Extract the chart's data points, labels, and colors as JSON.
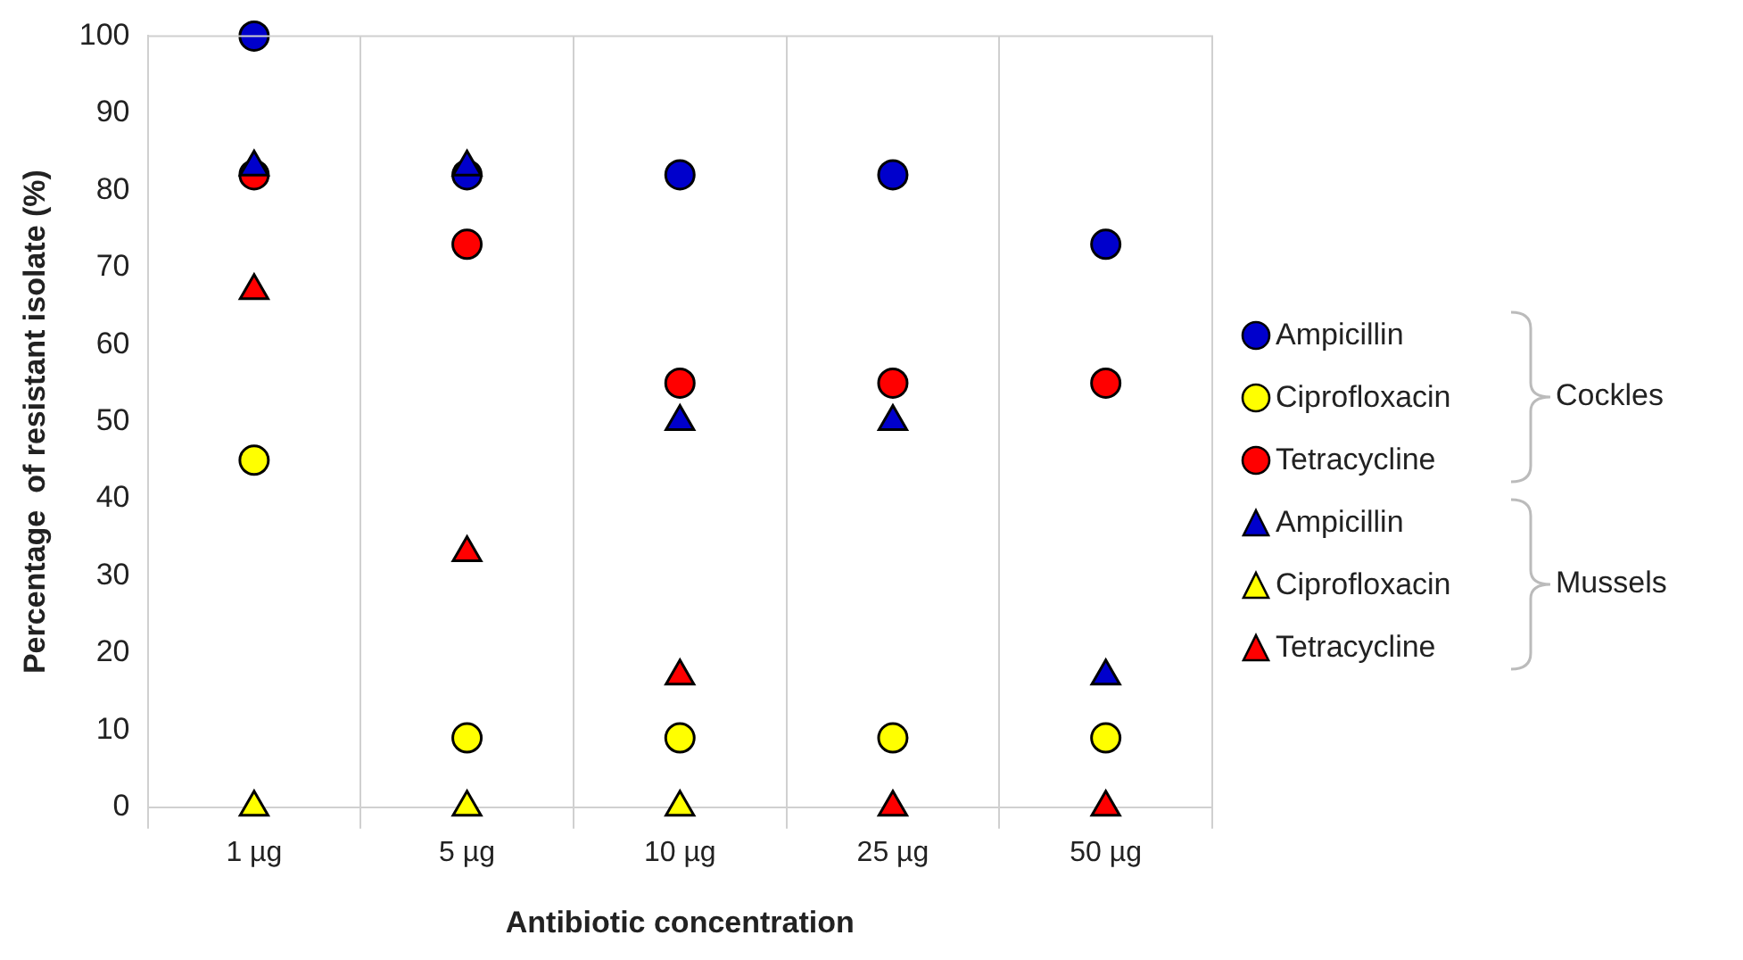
{
  "chart_data": {
    "type": "scatter",
    "xlabel": "Antibiotic concentration",
    "ylabel": "Percentage  of resistant isolate (%)",
    "categories": [
      "1 µg",
      "5 µg",
      "10 µg",
      "25 µg",
      "50 µg"
    ],
    "ylim": [
      0,
      100
    ],
    "yticks": [
      0,
      10,
      20,
      30,
      40,
      50,
      60,
      70,
      80,
      90,
      100
    ],
    "grid": "x",
    "legend": "right",
    "annotations": [
      "Cockles",
      "Mussels"
    ],
    "series": [
      {
        "name": "Ampicillin",
        "color": "#0000cc",
        "marker": "circle",
        "values": [
          100,
          82,
          82,
          82,
          73
        ]
      },
      {
        "name": "Ciprofloxacin",
        "color": "#ffff00",
        "marker": "circle",
        "values": [
          45,
          9,
          9,
          9,
          9
        ]
      },
      {
        "name": "Tetracycline",
        "color": "#ff0000",
        "marker": "circle",
        "values": [
          82,
          73,
          55,
          55,
          55
        ]
      },
      {
        "name": "Ampicillin",
        "color": "#0000cc",
        "marker": "triangle",
        "values": [
          83,
          83,
          50,
          50,
          17
        ]
      },
      {
        "name": "Ciprofloxacin",
        "color": "#ffff00",
        "marker": "triangle",
        "values": [
          0,
          0,
          0,
          null,
          null
        ]
      },
      {
        "name": "Tetracycline",
        "color": "#ff0000",
        "marker": "triangle",
        "values": [
          67,
          33,
          17,
          0,
          0
        ]
      }
    ]
  }
}
